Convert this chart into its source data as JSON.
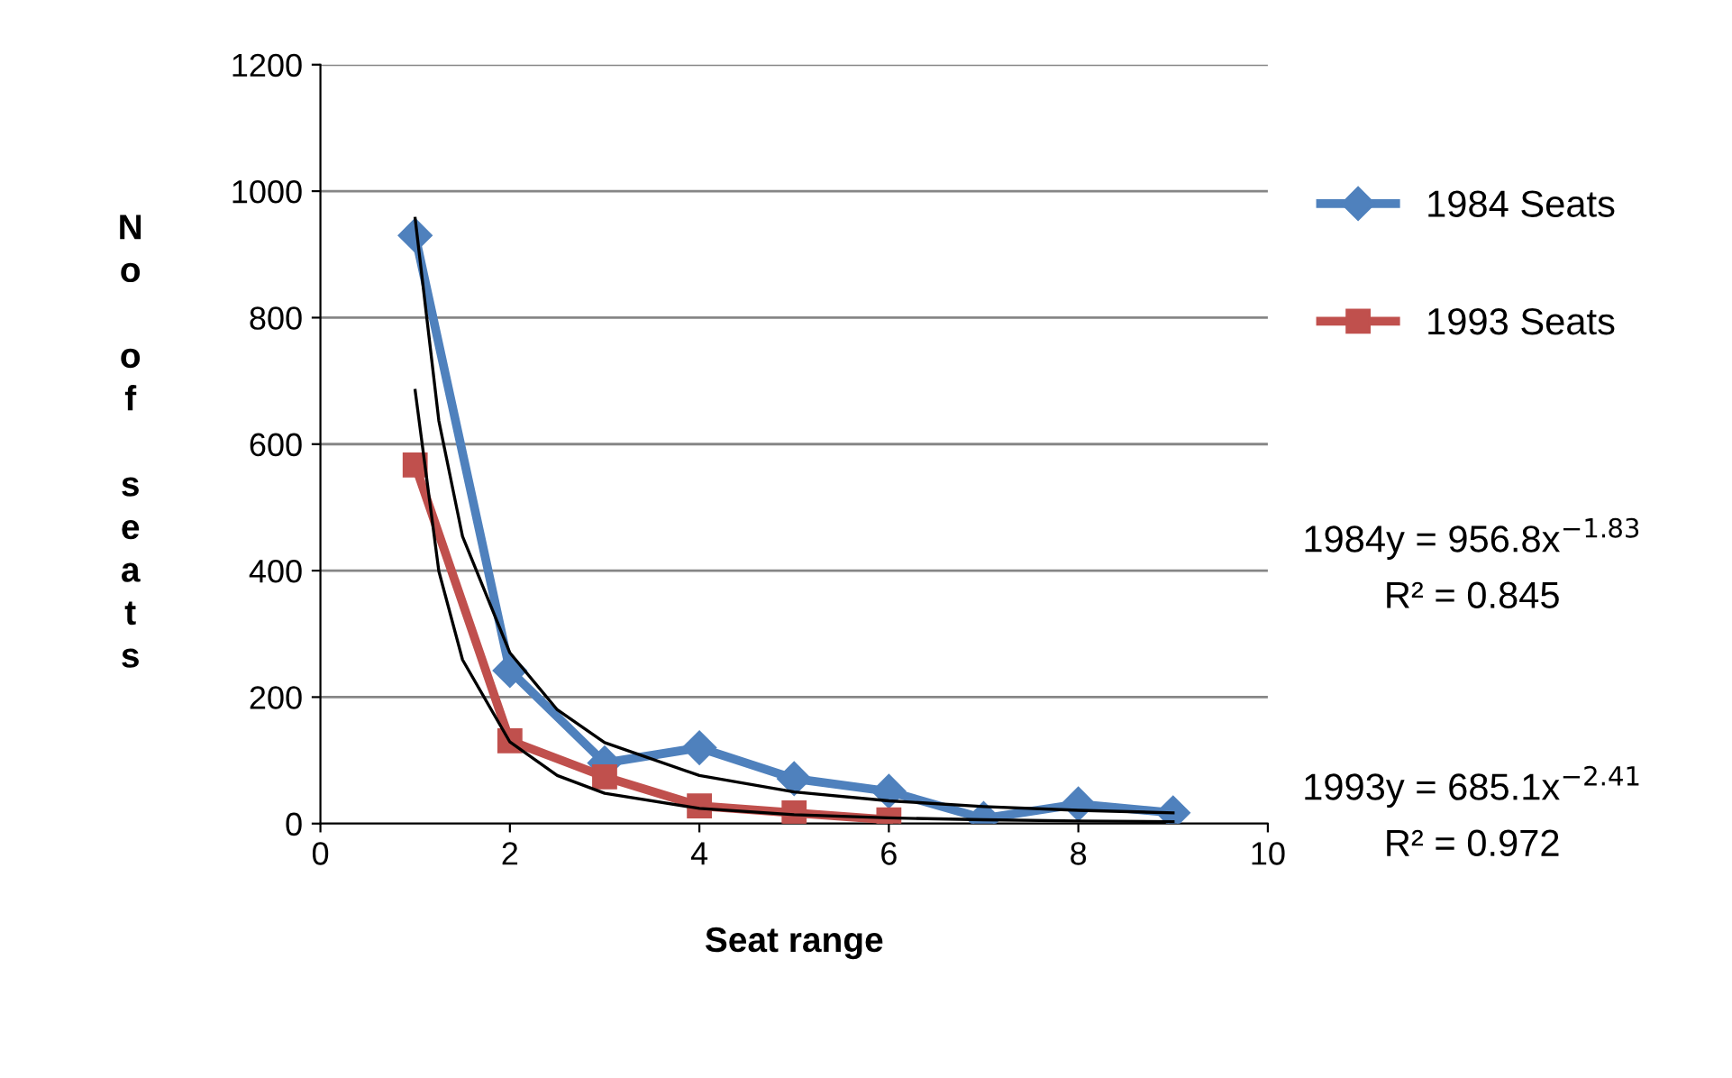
{
  "chart_data": {
    "type": "line",
    "xlabel": "Seat range",
    "ylabel": "No of seats",
    "xlim": [
      0,
      10
    ],
    "xticks": [
      0,
      2,
      4,
      6,
      8,
      10
    ],
    "ylim": [
      0,
      1200
    ],
    "yticks": [
      0,
      200,
      400,
      600,
      800,
      1000,
      1200
    ],
    "grid": "y",
    "legend": "right",
    "series": [
      {
        "name": "1984 Seats",
        "color": "#4f81bd",
        "marker": "diamond",
        "x": [
          1,
          2,
          3,
          4,
          5,
          6,
          7,
          8,
          9
        ],
        "values": [
          930,
          242,
          96,
          120,
          71,
          51,
          8,
          31,
          17
        ]
      },
      {
        "name": "1993 Seats",
        "color": "#c0504d",
        "marker": "square",
        "x": [
          1,
          2,
          3,
          4,
          5,
          6
        ],
        "values": [
          567,
          131,
          74,
          28,
          17,
          6
        ]
      },
      {
        "color": "#000000",
        "marker": "none",
        "x": [
          1,
          1.25,
          1.5,
          2,
          2.5,
          3,
          4,
          5,
          6,
          7,
          8,
          9
        ],
        "values": [
          957,
          637,
          454,
          270,
          180,
          128,
          76,
          50,
          36,
          27,
          21,
          17
        ]
      },
      {
        "color": "#000000",
        "marker": "none",
        "x": [
          1,
          1.25,
          1.5,
          2,
          2.5,
          3,
          4,
          5,
          6,
          7,
          8,
          9
        ],
        "values": [
          685,
          399,
          259,
          129,
          76,
          48,
          24,
          14,
          9,
          6,
          4,
          3
        ]
      }
    ],
    "annotations": [
      "1984y = 956.8x$^{−1.83}$",
      "R² = 0.845",
      "1993y = 685.1x$^{−2.41}$",
      "R² = 0.972"
    ]
  }
}
